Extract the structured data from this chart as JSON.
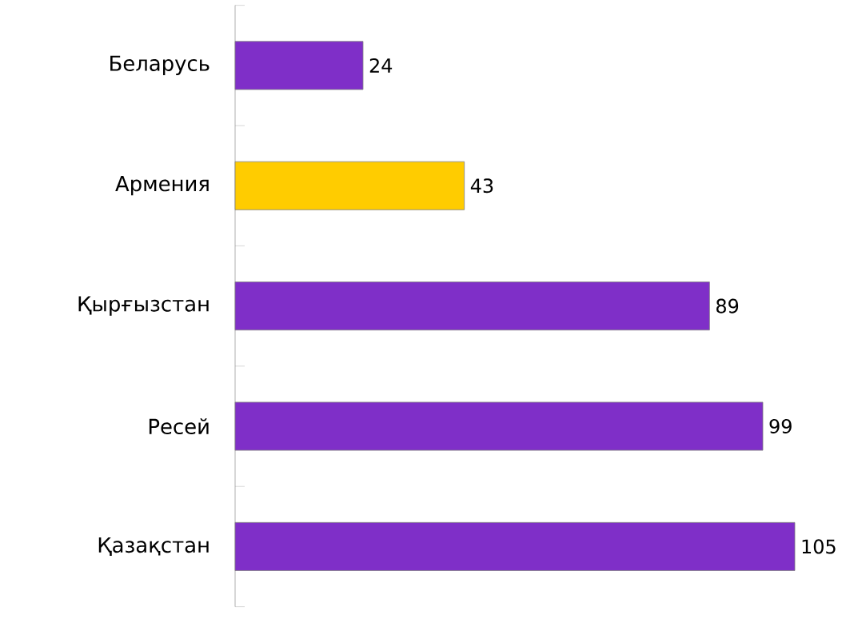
{
  "chart_data": {
    "type": "bar",
    "orientation": "horizontal",
    "categories": [
      "Беларусь",
      "Армения",
      "Қырғызстан",
      "Ресей",
      "Қазақстан"
    ],
    "values": [
      24,
      43,
      89,
      99,
      105
    ],
    "data_labels": true,
    "tick_labels": "y",
    "colors": [
      "#7f2fc8",
      "#ffcc00",
      "#7f2fc8",
      "#7f2fc8",
      "#7f2fc8"
    ]
  }
}
